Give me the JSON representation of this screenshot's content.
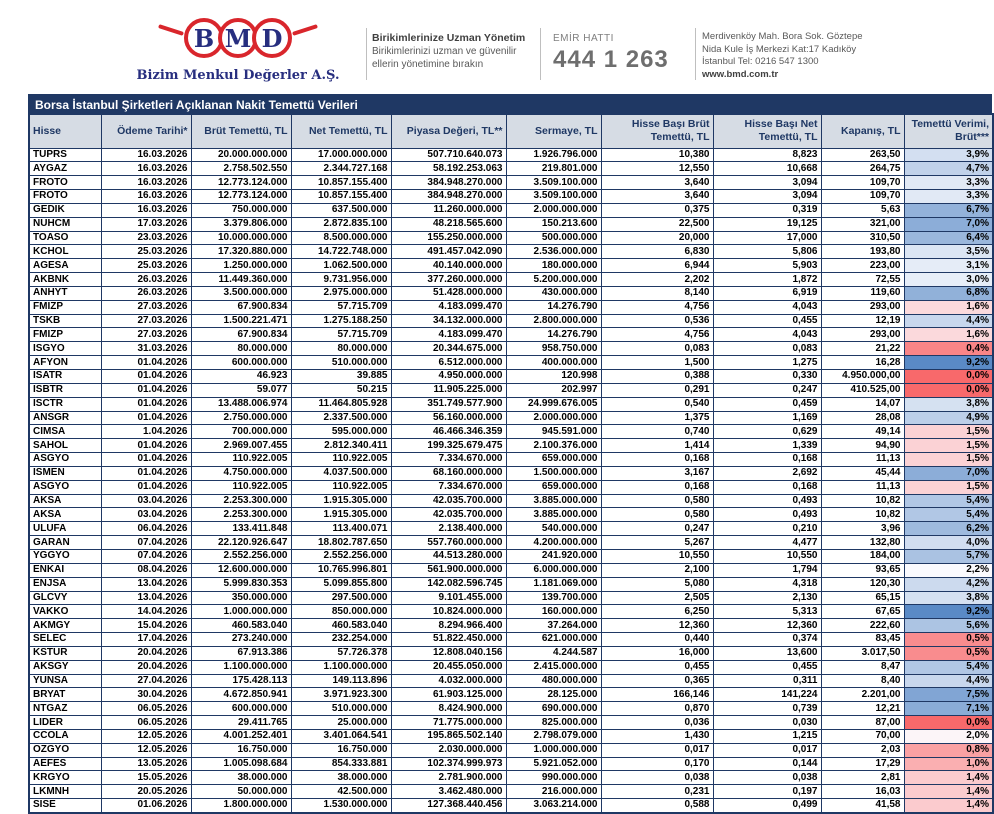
{
  "letterhead": {
    "logo_letters": [
      "B",
      "M",
      "D"
    ],
    "company_name": "Bizim Menkul Değerler A.Ş.",
    "slogan": {
      "title": "Birikimlerinize Uzman Yönetim",
      "line1": "Birikimlerinizi uzman ve güvenilir",
      "line2": "ellerin yönetimine bırakın"
    },
    "order_line": {
      "label": "EMİR HATTI",
      "number": "444 1 263"
    },
    "address": {
      "line1": "Merdivenköy Mah. Bora Sok. Göztepe",
      "line2": "Nida Kule İş Merkezi Kat:17 Kadıköy",
      "line3": "İstanbul    Tel: 0216 547 1300",
      "website": "www.bmd.com.tr"
    }
  },
  "colors": {
    "title_bg": "#1F3864",
    "header_bg": "#D6DCE4",
    "border": "#1F3864",
    "logo_red": "#D9262C",
    "logo_navy": "#272E7F",
    "scale_min_red": "#F8696B",
    "scale_mid_white": "#FCFCFF",
    "scale_max_blue": "#5A8AC6"
  },
  "table": {
    "title": "Borsa İstanbul Şirketleri Açıklanan Nakit Temettü Verileri",
    "columns": [
      "Hisse",
      "Ödeme Tarihi*",
      "Brüt Temettü, TL",
      "Net Temettü, TL",
      "Piyasa Değeri, TL**",
      "Sermaye, TL",
      "Hisse Başı Brüt\nTemettü, TL",
      "Hisse Başı Net\nTemettü, TL",
      "Kapanış, TL",
      "Temettü Verimi,\nBrüt***"
    ],
    "rows": [
      [
        "TUPRS",
        "16.03.2026",
        "20.000.000.000",
        "17.000.000.000",
        "507.710.640.073",
        "1.926.796.000",
        "10,380",
        "8,823",
        "263,50",
        "3,9%"
      ],
      [
        "AYGAZ",
        "16.03.2026",
        "2.758.502.550",
        "2.344.727.168",
        "58.192.253.063",
        "219.801.000",
        "12,550",
        "10,668",
        "264,75",
        "4,7%"
      ],
      [
        "FROTO",
        "16.03.2026",
        "12.773.124.000",
        "10.857.155.400",
        "384.948.270.000",
        "3.509.100.000",
        "3,640",
        "3,094",
        "109,70",
        "3,3%"
      ],
      [
        "FROTO",
        "16.03.2026",
        "12.773.124.000",
        "10.857.155.400",
        "384.948.270.000",
        "3.509.100.000",
        "3,640",
        "3,094",
        "109,70",
        "3,3%"
      ],
      [
        "GEDIK",
        "16.03.2026",
        "750.000.000",
        "637.500.000",
        "11.260.000.000",
        "2.000.000.000",
        "0,375",
        "0,319",
        "5,63",
        "6,7%"
      ],
      [
        "NUHCM",
        "17.03.2026",
        "3.379.806.000",
        "2.872.835.100",
        "48.218.565.600",
        "150.213.600",
        "22,500",
        "19,125",
        "321,00",
        "7,0%"
      ],
      [
        "TOASO",
        "23.03.2026",
        "10.000.000.000",
        "8.500.000.000",
        "155.250.000.000",
        "500.000.000",
        "20,000",
        "17,000",
        "310,50",
        "6,4%"
      ],
      [
        "KCHOL",
        "25.03.2026",
        "17.320.880.000",
        "14.722.748.000",
        "491.457.042.090",
        "2.536.000.000",
        "6,830",
        "5,806",
        "193,80",
        "3,5%"
      ],
      [
        "AGESA",
        "25.03.2026",
        "1.250.000.000",
        "1.062.500.000",
        "40.140.000.000",
        "180.000.000",
        "6,944",
        "5,903",
        "223,00",
        "3,1%"
      ],
      [
        "AKBNK",
        "26.03.2026",
        "11.449.360.000",
        "9.731.956.000",
        "377.260.000.000",
        "5.200.000.000",
        "2,202",
        "1,872",
        "72,55",
        "3,0%"
      ],
      [
        "ANHYT",
        "26.03.2026",
        "3.500.000.000",
        "2.975.000.000",
        "51.428.000.000",
        "430.000.000",
        "8,140",
        "6,919",
        "119,60",
        "6,8%"
      ],
      [
        "FMIZP",
        "27.03.2026",
        "67.900.834",
        "57.715.709",
        "4.183.099.470",
        "14.276.790",
        "4,756",
        "4,043",
        "293,00",
        "1,6%"
      ],
      [
        "TSKB",
        "27.03.2026",
        "1.500.221.471",
        "1.275.188.250",
        "34.132.000.000",
        "2.800.000.000",
        "0,536",
        "0,455",
        "12,19",
        "4,4%"
      ],
      [
        "FMIZP",
        "27.03.2026",
        "67.900.834",
        "57.715.709",
        "4.183.099.470",
        "14.276.790",
        "4,756",
        "4,043",
        "293,00",
        "1,6%"
      ],
      [
        "ISGYO",
        "31.03.2026",
        "80.000.000",
        "80.000.000",
        "20.344.675.000",
        "958.750.000",
        "0,083",
        "0,083",
        "21,22",
        "0,4%"
      ],
      [
        "AFYON",
        "01.04.2026",
        "600.000.000",
        "510.000.000",
        "6.512.000.000",
        "400.000.000",
        "1,500",
        "1,275",
        "16,28",
        "9,2%"
      ],
      [
        "ISATR",
        "01.04.2026",
        "46.923",
        "39.885",
        "4.950.000.000",
        "120.998",
        "0,388",
        "0,330",
        "4.950.000,00",
        "0,0%"
      ],
      [
        "ISBTR",
        "01.04.2026",
        "59.077",
        "50.215",
        "11.905.225.000",
        "202.997",
        "0,291",
        "0,247",
        "410.525,00",
        "0,0%"
      ],
      [
        "ISCTR",
        "01.04.2026",
        "13.488.006.974",
        "11.464.805.928",
        "351.749.577.900",
        "24.999.676.005",
        "0,540",
        "0,459",
        "14,07",
        "3,8%"
      ],
      [
        "ANSGR",
        "01.04.2026",
        "2.750.000.000",
        "2.337.500.000",
        "56.160.000.000",
        "2.000.000.000",
        "1,375",
        "1,169",
        "28,08",
        "4,9%"
      ],
      [
        "CIMSA",
        "1.04.2026",
        "700.000.000",
        "595.000.000",
        "46.466.346.359",
        "945.591.000",
        "0,740",
        "0,629",
        "49,14",
        "1,5%"
      ],
      [
        "SAHOL",
        "01.04.2026",
        "2.969.007.455",
        "2.812.340.411",
        "199.325.679.475",
        "2.100.376.000",
        "1,414",
        "1,339",
        "94,90",
        "1,5%"
      ],
      [
        "ASGYO",
        "01.04.2026",
        "110.922.005",
        "110.922.005",
        "7.334.670.000",
        "659.000.000",
        "0,168",
        "0,168",
        "11,13",
        "1,5%"
      ],
      [
        "ISMEN",
        "01.04.2026",
        "4.750.000.000",
        "4.037.500.000",
        "68.160.000.000",
        "1.500.000.000",
        "3,167",
        "2,692",
        "45,44",
        "7,0%"
      ],
      [
        "ASGYO",
        "01.04.2026",
        "110.922.005",
        "110.922.005",
        "7.334.670.000",
        "659.000.000",
        "0,168",
        "0,168",
        "11,13",
        "1,5%"
      ],
      [
        "AKSA",
        "03.04.2026",
        "2.253.300.000",
        "1.915.305.000",
        "42.035.700.000",
        "3.885.000.000",
        "0,580",
        "0,493",
        "10,82",
        "5,4%"
      ],
      [
        "AKSA",
        "03.04.2026",
        "2.253.300.000",
        "1.915.305.000",
        "42.035.700.000",
        "3.885.000.000",
        "0,580",
        "0,493",
        "10,82",
        "5,4%"
      ],
      [
        "ULUFA",
        "06.04.2026",
        "133.411.848",
        "113.400.071",
        "2.138.400.000",
        "540.000.000",
        "0,247",
        "0,210",
        "3,96",
        "6,2%"
      ],
      [
        "GARAN",
        "07.04.2026",
        "22.120.926.647",
        "18.802.787.650",
        "557.760.000.000",
        "4.200.000.000",
        "5,267",
        "4,477",
        "132,80",
        "4,0%"
      ],
      [
        "YGGYO",
        "07.04.2026",
        "2.552.256.000",
        "2.552.256.000",
        "44.513.280.000",
        "241.920.000",
        "10,550",
        "10,550",
        "184,00",
        "5,7%"
      ],
      [
        "ENKAI",
        "08.04.2026",
        "12.600.000.000",
        "10.765.996.801",
        "561.900.000.000",
        "6.000.000.000",
        "2,100",
        "1,794",
        "93,65",
        "2,2%"
      ],
      [
        "ENJSA",
        "13.04.2026",
        "5.999.830.353",
        "5.099.855.800",
        "142.082.596.745",
        "1.181.069.000",
        "5,080",
        "4,318",
        "120,30",
        "4,2%"
      ],
      [
        "GLCVY",
        "13.04.2026",
        "350.000.000",
        "297.500.000",
        "9.101.455.000",
        "139.700.000",
        "2,505",
        "2,130",
        "65,15",
        "3,8%"
      ],
      [
        "VAKKO",
        "14.04.2026",
        "1.000.000.000",
        "850.000.000",
        "10.824.000.000",
        "160.000.000",
        "6,250",
        "5,313",
        "67,65",
        "9,2%"
      ],
      [
        "AKMGY",
        "15.04.2026",
        "460.583.040",
        "460.583.040",
        "8.294.966.400",
        "37.264.000",
        "12,360",
        "12,360",
        "222,60",
        "5,6%"
      ],
      [
        "SELEC",
        "17.04.2026",
        "273.240.000",
        "232.254.000",
        "51.822.450.000",
        "621.000.000",
        "0,440",
        "0,374",
        "83,45",
        "0,5%"
      ],
      [
        "KSTUR",
        "20.04.2026",
        "67.913.386",
        "57.726.378",
        "12.808.040.156",
        "4.244.587",
        "16,000",
        "13,600",
        "3.017,50",
        "0,5%"
      ],
      [
        "AKSGY",
        "20.04.2026",
        "1.100.000.000",
        "1.100.000.000",
        "20.455.050.000",
        "2.415.000.000",
        "0,455",
        "0,455",
        "8,47",
        "5,4%"
      ],
      [
        "YUNSA",
        "27.04.2026",
        "175.428.113",
        "149.113.896",
        "4.032.000.000",
        "480.000.000",
        "0,365",
        "0,311",
        "8,40",
        "4,4%"
      ],
      [
        "BRYAT",
        "30.04.2026",
        "4.672.850.941",
        "3.971.923.300",
        "61.903.125.000",
        "28.125.000",
        "166,146",
        "141,224",
        "2.201,00",
        "7,5%"
      ],
      [
        "NTGAZ",
        "06.05.2026",
        "600.000.000",
        "510.000.000",
        "8.424.900.000",
        "690.000.000",
        "0,870",
        "0,739",
        "12,21",
        "7,1%"
      ],
      [
        "LIDER",
        "06.05.2026",
        "29.411.765",
        "25.000.000",
        "71.775.000.000",
        "825.000.000",
        "0,036",
        "0,030",
        "87,00",
        "0,0%"
      ],
      [
        "CCOLA",
        "12.05.2026",
        "4.001.252.401",
        "3.401.064.541",
        "195.865.502.140",
        "2.798.079.000",
        "1,430",
        "1,215",
        "70,00",
        "2,0%"
      ],
      [
        "OZGYO",
        "12.05.2026",
        "16.750.000",
        "16.750.000",
        "2.030.000.000",
        "1.000.000.000",
        "0,017",
        "0,017",
        "2,03",
        "0,8%"
      ],
      [
        "AEFES",
        "13.05.2026",
        "1.005.098.684",
        "854.333.881",
        "102.374.999.973",
        "5.921.052.000",
        "0,170",
        "0,144",
        "17,29",
        "1,0%"
      ],
      [
        "KRGYO",
        "15.05.2026",
        "38.000.000",
        "38.000.000",
        "2.781.900.000",
        "990.000.000",
        "0,038",
        "0,038",
        "2,81",
        "1,4%"
      ],
      [
        "LKMNH",
        "20.05.2026",
        "50.000.000",
        "42.500.000",
        "3.462.480.000",
        "216.000.000",
        "0,231",
        "0,197",
        "16,03",
        "1,4%"
      ],
      [
        "SISE",
        "01.06.2026",
        "1.800.000.000",
        "1.530.000.000",
        "127.368.440.456",
        "3.063.214.000",
        "0,588",
        "0,499",
        "41,58",
        "1,4%"
      ]
    ],
    "yield_scale": {
      "min_value": 0.0,
      "mid_value": 2.1,
      "max_value": 9.2
    }
  }
}
